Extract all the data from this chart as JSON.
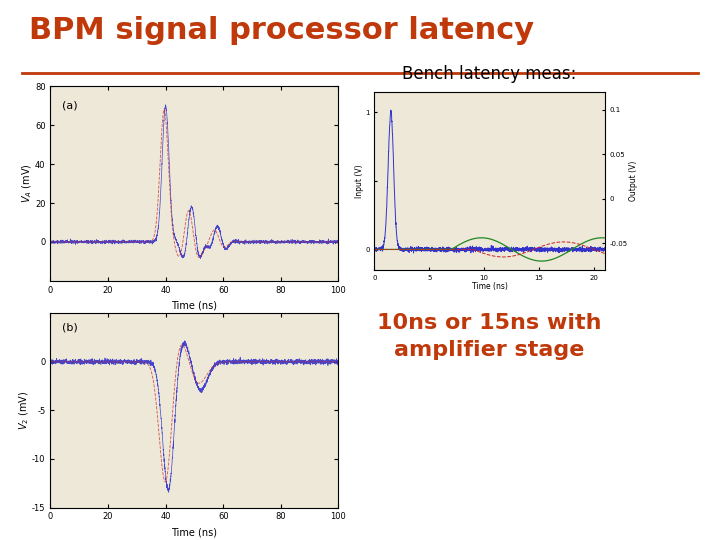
{
  "title": "BPM signal processor latency",
  "title_color": "#c0390b",
  "title_fontsize": 22,
  "title_fontweight": "bold",
  "divider_color": "#c0390b",
  "bench_label": "Bench latency meas:",
  "bench_label_fontsize": 12,
  "bench_label_color": "#000000",
  "latency_text": "10ns or 15ns with\namplifier stage",
  "latency_fontsize": 16,
  "latency_color": "#c0390b",
  "latency_fontweight": "bold",
  "plot_xlabel": "Time (ns)",
  "subplot_bg": "#ede8d8",
  "bg_color": "#ffffff"
}
